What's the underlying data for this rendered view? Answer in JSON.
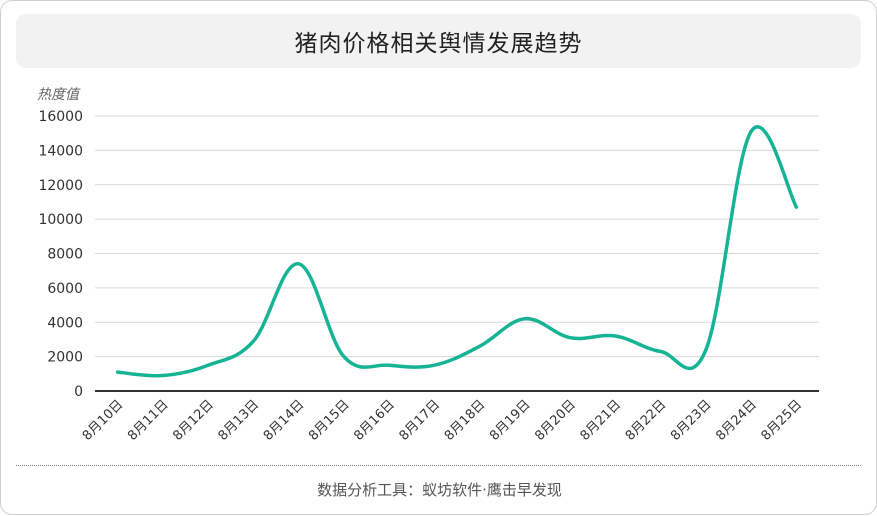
{
  "header": {
    "title": "猪肉价格相关舆情发展趋势"
  },
  "footer": {
    "source": "数据分析工具：蚁坊软件·鹰击早发现"
  },
  "chart_data": {
    "type": "line",
    "title": "猪肉价格相关舆情发展趋势",
    "ylabel": "热度值",
    "xlabel": "",
    "categories": [
      "8月10日",
      "8月11日",
      "8月12日",
      "8月13日",
      "8月14日",
      "8月15日",
      "8月16日",
      "8月17日",
      "8月18日",
      "8月19日",
      "8月20日",
      "8月21日",
      "8月22日",
      "8月23日",
      "8月24日",
      "8月25日"
    ],
    "series": [
      {
        "values": [
          1100,
          900,
          1500,
          2900,
          7400,
          2000,
          1500,
          1500,
          2600,
          4200,
          3100,
          3200,
          2300,
          2400,
          15100,
          10700
        ]
      }
    ],
    "ylim": [
      0,
      16000
    ],
    "yticks": [
      0,
      2000,
      4000,
      6000,
      8000,
      10000,
      12000,
      14000,
      16000
    ],
    "grid": true,
    "colors": {
      "line": "#16b395",
      "grid": "#d9d9d9",
      "axis": "#333333"
    }
  }
}
